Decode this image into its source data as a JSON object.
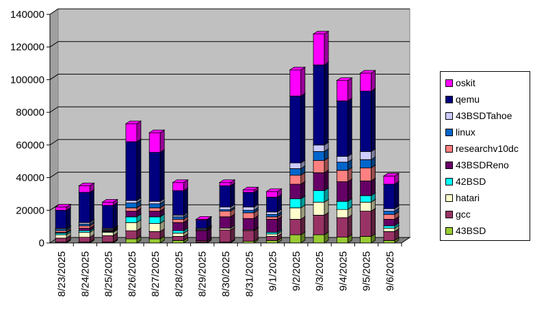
{
  "chart_data": {
    "type": "bar",
    "stacked": true,
    "three_d": true,
    "categories": [
      "8/23/2025",
      "8/24/2025",
      "8/25/2025",
      "8/26/2025",
      "8/27/2025",
      "8/28/2025",
      "8/29/2025",
      "8/30/2025",
      "8/31/2025",
      "9/1/2025",
      "9/2/2025",
      "9/3/2025",
      "9/4/2025",
      "9/5/2025",
      "9/6/2025"
    ],
    "ylim": [
      0,
      140000
    ],
    "yticks": [
      0,
      20000,
      40000,
      60000,
      80000,
      100000,
      120000,
      140000
    ],
    "ytick_labels": [
      "0",
      "20000",
      "40000",
      "60000",
      "80000",
      "100000",
      "120000",
      "140000"
    ],
    "grid": true,
    "legend_position": "right",
    "title": "",
    "xlabel": "",
    "ylabel": "",
    "series": [
      {
        "name": "43BSD",
        "color": "#99cc33",
        "values": [
          500,
          500,
          500,
          2500,
          2500,
          1500,
          500,
          500,
          1000,
          1500,
          5000,
          5000,
          3500,
          4000,
          1500
        ]
      },
      {
        "name": "gcc",
        "color": "#993366",
        "values": [
          2500,
          3000,
          4000,
          5000,
          4500,
          2500,
          1000,
          7500,
          6500,
          2500,
          9500,
          12000,
          12000,
          15500,
          5500
        ]
      },
      {
        "name": "hatari",
        "color": "#ffffcc",
        "values": [
          2000,
          3000,
          2000,
          5000,
          5000,
          2000,
          0,
          1000,
          500,
          1500,
          7000,
          8000,
          5000,
          5500,
          2000
        ]
      },
      {
        "name": "42BSD",
        "color": "#00ffff",
        "values": [
          1000,
          1000,
          500,
          3500,
          4000,
          1500,
          0,
          0,
          0,
          1000,
          5500,
          7000,
          5000,
          4000,
          1500
        ]
      },
      {
        "name": "43BSDReno",
        "color": "#660066",
        "values": [
          500,
          1500,
          500,
          3500,
          3500,
          5000,
          6000,
          7000,
          7000,
          8000,
          9000,
          11000,
          12000,
          9000,
          4000
        ]
      },
      {
        "name": "researchv10dc",
        "color": "#ff8080",
        "values": [
          1000,
          1500,
          500,
          2000,
          2000,
          2000,
          500,
          3500,
          3500,
          1500,
          5500,
          7500,
          7000,
          8000,
          3000
        ]
      },
      {
        "name": "linux",
        "color": "#0066cc",
        "values": [
          1000,
          1000,
          500,
          3000,
          2500,
          1500,
          500,
          1000,
          1500,
          1500,
          4000,
          5500,
          5000,
          5000,
          2000
        ]
      },
      {
        "name": "43BSDTahoe",
        "color": "#ccccff",
        "values": [
          500,
          1000,
          500,
          1500,
          1500,
          1000,
          500,
          1500,
          2000,
          1500,
          3500,
          4000,
          3500,
          5000,
          1500
        ]
      },
      {
        "name": "qemu",
        "color": "#000080",
        "values": [
          11000,
          18500,
          14000,
          36000,
          30000,
          15000,
          5000,
          13000,
          9000,
          9000,
          41000,
          49000,
          34000,
          37000,
          15000
        ]
      },
      {
        "name": "oskit",
        "color": "#ff00ff",
        "values": [
          2000,
          4000,
          2000,
          11000,
          12000,
          5000,
          500,
          2000,
          1500,
          3500,
          16000,
          19000,
          12500,
          11000,
          5000
        ]
      }
    ]
  },
  "colors": {
    "plot_background": "#c0c0c0",
    "floor": "#808080",
    "gridline": "#000000"
  }
}
